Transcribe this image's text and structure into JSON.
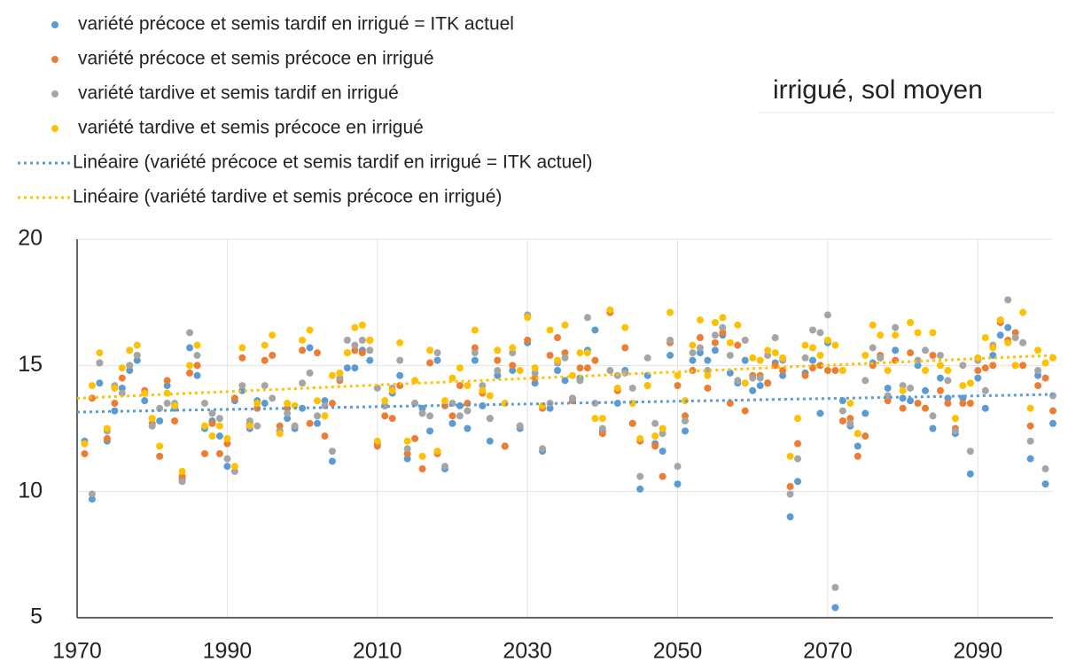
{
  "chart_data": {
    "type": "scatter",
    "title": "irrigué, sol moyen",
    "legend": "top-left",
    "grid": true,
    "xlim": [
      1970,
      2100
    ],
    "ylim": [
      5,
      20
    ],
    "xticks": [
      1970,
      1990,
      2010,
      2030,
      2050,
      2070,
      2090
    ],
    "yticks": [
      5,
      10,
      15,
      20
    ],
    "x": [
      1971,
      1972,
      1973,
      1974,
      1975,
      1976,
      1977,
      1978,
      1979,
      1980,
      1981,
      1982,
      1983,
      1984,
      1985,
      1986,
      1987,
      1988,
      1989,
      1990,
      1991,
      1992,
      1993,
      1994,
      1995,
      1996,
      1997,
      1998,
      1999,
      2000,
      2001,
      2002,
      2003,
      2004,
      2005,
      2006,
      2007,
      2008,
      2009,
      2010,
      2011,
      2012,
      2013,
      2014,
      2015,
      2016,
      2017,
      2018,
      2019,
      2020,
      2021,
      2022,
      2023,
      2024,
      2025,
      2026,
      2027,
      2028,
      2029,
      2030,
      2031,
      2032,
      2033,
      2034,
      2035,
      2036,
      2037,
      2038,
      2039,
      2040,
      2041,
      2042,
      2043,
      2044,
      2045,
      2046,
      2047,
      2048,
      2049,
      2050,
      2051,
      2052,
      2053,
      2054,
      2055,
      2056,
      2057,
      2058,
      2059,
      2060,
      2061,
      2062,
      2063,
      2064,
      2065,
      2066,
      2067,
      2068,
      2069,
      2070,
      2071,
      2072,
      2073,
      2074,
      2075,
      2076,
      2077,
      2078,
      2079,
      2080,
      2081,
      2082,
      2083,
      2084,
      2085,
      2086,
      2087,
      2088,
      2089,
      2090,
      2091,
      2092,
      2093,
      2094,
      2095,
      2096,
      2097,
      2098,
      2099,
      2100
    ],
    "series": [
      {
        "name": "variété précoce et semis tardif en irrigué = ITK actuel",
        "color": "#5b9bd5",
        "values": [
          12.0,
          9.7,
          14.3,
          12.0,
          13.2,
          14.1,
          14.8,
          15.2,
          13.6,
          12.6,
          12.8,
          14.2,
          13.3,
          10.5,
          15.7,
          14.6,
          12.5,
          12.8,
          12.2,
          11.0,
          13.6,
          14.0,
          12.5,
          13.6,
          13.5,
          15.4,
          12.4,
          12.9,
          12.5,
          13.3,
          15.7,
          12.7,
          13.6,
          11.2,
          14.5,
          14.9,
          14.9,
          15.6,
          15.2,
          11.9,
          13.4,
          13.9,
          14.6,
          11.3,
          13.5,
          13.3,
          12.4,
          15.2,
          10.9,
          12.7,
          13.4,
          12.5,
          15.2,
          13.4,
          12.0,
          14.6,
          11.8,
          14.8,
          12.5,
          15.9,
          14.3,
          11.6,
          13.3,
          14.8,
          14.4,
          13.7,
          14.5,
          15.6,
          16.4,
          12.4,
          17.1,
          13.5,
          14.8,
          12.7,
          10.1,
          14.6,
          11.9,
          11.6,
          15.4,
          10.3,
          12.4,
          15.2,
          15.5,
          15.2,
          15.6,
          16.2,
          14.7,
          14.3,
          15.2,
          14.0,
          14.2,
          14.3,
          15.1,
          14.6,
          9.0,
          10.4,
          14.7,
          15.2,
          13.1,
          15.9,
          5.4,
          13.6,
          12.6,
          11.8,
          13.1,
          15.1,
          15.3,
          14.1,
          15.6,
          13.7,
          13.6,
          15.0,
          14.0,
          12.5,
          14.5,
          13.7,
          12.3,
          13.7,
          10.7,
          14.5,
          13.3,
          15.4,
          16.2,
          16.5,
          15.0,
          15.9,
          11.3,
          14.6,
          10.3,
          12.7
        ]
      },
      {
        "name": "variété précoce et semis précoce en irrigué",
        "color": "#ed7d31",
        "values": [
          11.5,
          13.7,
          15.1,
          12.1,
          13.5,
          14.5,
          15.0,
          15.4,
          14.0,
          12.7,
          11.4,
          14.4,
          12.8,
          10.6,
          14.7,
          15.0,
          11.5,
          12.7,
          11.5,
          11.9,
          13.7,
          15.3,
          12.7,
          13.3,
          15.2,
          15.4,
          12.6,
          13.3,
          12.6,
          15.6,
          12.7,
          15.5,
          12.2,
          13.5,
          14.4,
          15.5,
          15.6,
          15.5,
          16.0,
          11.8,
          13.0,
          12.9,
          14.2,
          11.5,
          12.1,
          10.9,
          15.1,
          11.5,
          13.4,
          13.0,
          14.2,
          13.5,
          15.7,
          13.9,
          12.9,
          15.2,
          11.8,
          15.0,
          12.6,
          16.0,
          14.5,
          13.3,
          15.4,
          16.1,
          15.5,
          13.6,
          14.9,
          14.9,
          15.2,
          12.3,
          17.1,
          14.0,
          15.7,
          12.7,
          12.0,
          14.2,
          11.8,
          10.6,
          15.9,
          14.2,
          13.0,
          14.8,
          16.1,
          14.1,
          15.9,
          16.3,
          13.5,
          15.8,
          13.2,
          14.6,
          14.6,
          14.3,
          15.0,
          14.8,
          10.2,
          11.9,
          14.6,
          14.9,
          15.0,
          14.8,
          14.8,
          12.8,
          12.9,
          11.4,
          12.2,
          15.0,
          15.4,
          13.6,
          15.2,
          13.3,
          15.5,
          13.5,
          13.3,
          15.4,
          14.0,
          13.5,
          12.5,
          13.5,
          13.5,
          14.8,
          14.9,
          15.0,
          16.7,
          16.0,
          16.3,
          15.0,
          12.6,
          14.2,
          14.5,
          13.2
        ]
      },
      {
        "name": "variété tardive et semis tardif en irrigué",
        "color": "#a5a5a5",
        "values": [
          11.9,
          9.9,
          15.1,
          12.4,
          14.2,
          13.9,
          15.0,
          15.4,
          13.9,
          12.6,
          13.3,
          13.5,
          13.5,
          10.4,
          16.3,
          15.4,
          13.5,
          13.1,
          12.9,
          11.3,
          10.8,
          14.2,
          12.8,
          12.6,
          14.2,
          13.7,
          12.4,
          13.1,
          12.6,
          14.3,
          14.7,
          13.0,
          13.4,
          11.6,
          14.5,
          16.0,
          15.8,
          16.0,
          15.6,
          14.1,
          13.4,
          14.1,
          15.2,
          11.7,
          13.5,
          13.1,
          13.0,
          15.5,
          11.0,
          13.5,
          13.0,
          13.2,
          15.5,
          14.2,
          12.9,
          14.8,
          13.5,
          15.5,
          12.6,
          17.0,
          14.7,
          11.7,
          13.5,
          15.1,
          15.3,
          13.7,
          14.4,
          16.9,
          13.5,
          12.5,
          14.8,
          14.6,
          14.7,
          14.1,
          10.6,
          15.3,
          12.7,
          12.3,
          16.0,
          11.0,
          12.8,
          15.5,
          15.7,
          14.8,
          16.2,
          16.5,
          15.4,
          14.4,
          16.0,
          14.5,
          14.5,
          15.4,
          16.1,
          15.2,
          9.9,
          11.3,
          15.3,
          16.4,
          16.3,
          17.0,
          6.2,
          13.2,
          12.7,
          12.3,
          14.4,
          15.7,
          15.3,
          13.8,
          16.5,
          14.2,
          14.1,
          15.2,
          15.6,
          13.0,
          15.4,
          14.4,
          12.4,
          15.0,
          11.6,
          15.2,
          14.0,
          15.8,
          16.8,
          17.6,
          16.1,
          15.9,
          12.0,
          14.8,
          10.9,
          13.8
        ]
      },
      {
        "name": "variété tardive et semis précoce en irrigué",
        "color": "#ffc000",
        "values": [
          11.9,
          14.2,
          15.5,
          12.5,
          14.1,
          14.9,
          15.6,
          15.8,
          13.9,
          12.9,
          11.8,
          13.9,
          13.4,
          10.8,
          15.0,
          15.8,
          12.6,
          12.2,
          12.6,
          12.1,
          11.0,
          15.7,
          12.6,
          13.5,
          15.8,
          16.2,
          12.3,
          13.5,
          13.4,
          16.0,
          16.4,
          13.6,
          13.0,
          14.6,
          14.7,
          15.5,
          16.5,
          16.6,
          16.0,
          12.0,
          13.6,
          14.0,
          15.9,
          12.0,
          14.4,
          11.4,
          15.6,
          11.6,
          13.6,
          14.5,
          14.9,
          14.2,
          16.4,
          14.0,
          13.8,
          15.6,
          13.5,
          15.7,
          14.8,
          16.9,
          14.9,
          13.4,
          16.4,
          15.2,
          16.6,
          14.6,
          15.5,
          15.5,
          12.9,
          12.9,
          17.2,
          14.1,
          16.5,
          13.5,
          12.1,
          14.2,
          12.2,
          12.5,
          17.1,
          14.6,
          13.6,
          15.8,
          16.8,
          14.6,
          16.7,
          16.9,
          15.9,
          16.6,
          14.3,
          15.3,
          15.2,
          15.6,
          15.5,
          15.3,
          11.4,
          12.9,
          15.8,
          15.7,
          15.4,
          16.0,
          15.8,
          14.8,
          13.5,
          12.3,
          15.4,
          16.6,
          16.2,
          14.8,
          16.2,
          14.0,
          16.7,
          16.3,
          14.8,
          16.3,
          15.0,
          14.8,
          12.9,
          14.2,
          14.3,
          15.3,
          16.1,
          15.7,
          16.8,
          15.9,
          15.0,
          17.1,
          13.3,
          15.6,
          15.1,
          15.3
        ]
      }
    ],
    "trendlines": [
      {
        "name": "Linéaire (variété précoce et semis tardif en irrigué = ITK actuel)",
        "color": "#5b9bd5",
        "x": [
          1970,
          2100
        ],
        "values": [
          13.15,
          13.85
        ]
      },
      {
        "name": "Linéaire (variété tardive et semis précoce en irrigué)",
        "color": "#ffc000",
        "x": [
          1970,
          2100
        ],
        "values": [
          13.7,
          15.4
        ]
      }
    ]
  }
}
